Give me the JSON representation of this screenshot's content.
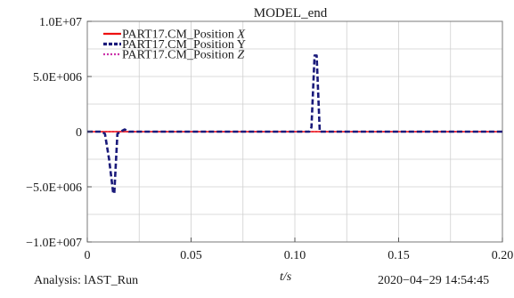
{
  "chart_data": {
    "type": "line",
    "title": "MODEL_end",
    "xlabel": "t/s",
    "ylabel": "",
    "xlim": [
      0,
      0.2
    ],
    "ylim": [
      -10000000,
      10000000
    ],
    "x_ticks": [
      0,
      0.05,
      0.1,
      0.15,
      0.2
    ],
    "x_tick_labels": [
      "0",
      "0.05",
      "0.10",
      "0.15",
      "0.20"
    ],
    "y_ticks": [
      10000000,
      5000000,
      0,
      -5000000,
      -10000000
    ],
    "y_tick_labels": [
      "1.0E+07",
      "5.0E+006",
      "0",
      "−5.0E+006",
      "−1.0E+007"
    ],
    "grid": true,
    "legend_position": "top-left",
    "series": [
      {
        "name": "PART17.CM_Position X",
        "label_main": "PART17.CM_Position ",
        "label_axis": "X",
        "color": "#ee1111",
        "style": "solid",
        "x": [
          0,
          0.2
        ],
        "y": [
          0,
          0
        ]
      },
      {
        "name": "PART17.CM_Position Y",
        "label_main": "PART17.CM_Position Y",
        "label_axis": "",
        "color": "#1a1a7a",
        "style": "dashed",
        "x": [
          0,
          0.007,
          0.0085,
          0.0105,
          0.0125,
          0.013,
          0.0145,
          0.016,
          0.018,
          0.02,
          0.022,
          0.107,
          0.108,
          0.1095,
          0.1105,
          0.112,
          0.2
        ],
        "y": [
          0,
          0,
          -200000,
          -2500000,
          -5600000,
          -5600000,
          -200000,
          0,
          200000,
          0,
          0,
          0,
          400000,
          6900000,
          6900000,
          0,
          0
        ]
      },
      {
        "name": "PART17.CM_Position Z",
        "label_main": "PART17.CM_Position ",
        "label_axis": "Z",
        "color": "#cc33aa",
        "style": "dotted",
        "x": [
          0,
          0.2
        ],
        "y": [
          0,
          0
        ]
      }
    ]
  },
  "footer": {
    "analysis_label": "Analysis: lAST_Run",
    "timestamp": "2020−04−29 14:54:45"
  }
}
